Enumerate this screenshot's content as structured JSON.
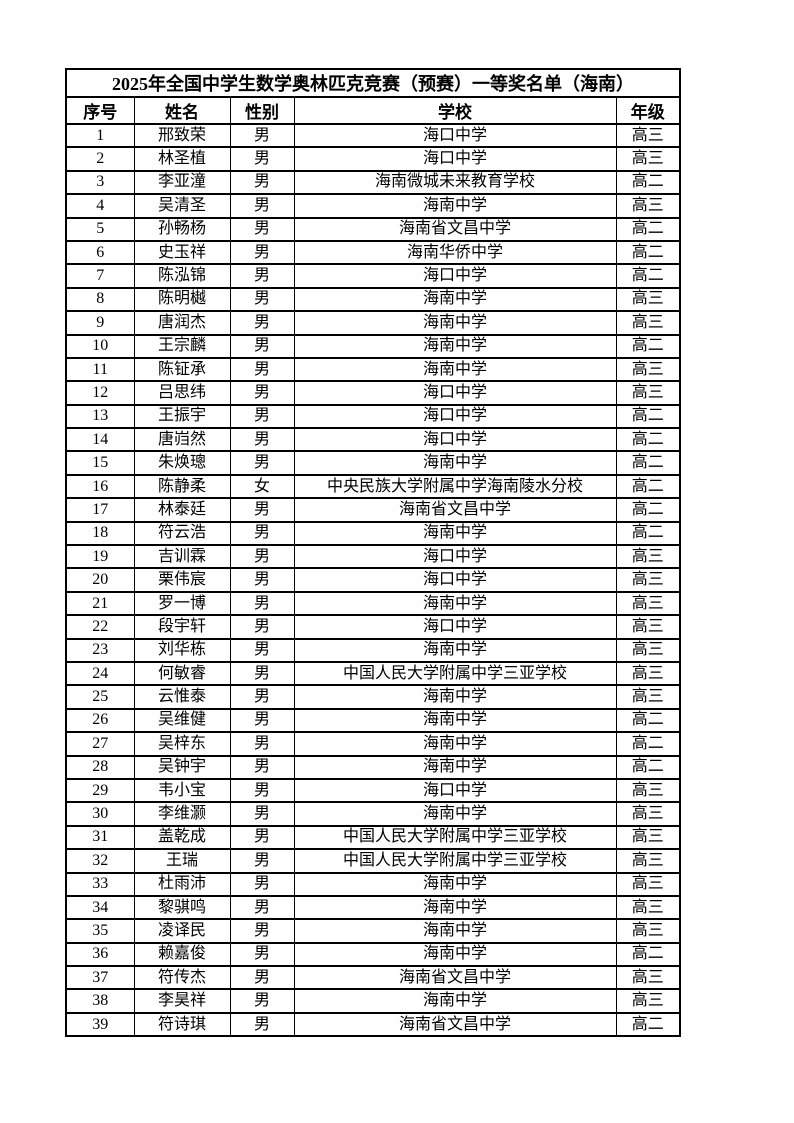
{
  "page": {
    "background_color": "#ffffff",
    "text_color": "#000000",
    "border_color": "#000000"
  },
  "table": {
    "title": "2025年全国中学生数学奥林匹克竞赛（预赛）一等奖名单（海南）",
    "columns": [
      "序号",
      "姓名",
      "性别",
      "学校",
      "年级"
    ],
    "rows": [
      [
        "1",
        "邢致荣",
        "男",
        "海口中学",
        "高三"
      ],
      [
        "2",
        "林圣植",
        "男",
        "海口中学",
        "高三"
      ],
      [
        "3",
        "李亚潼",
        "男",
        "海南微城未来教育学校",
        "高二"
      ],
      [
        "4",
        "吴清圣",
        "男",
        "海南中学",
        "高三"
      ],
      [
        "5",
        "孙畅杨",
        "男",
        "海南省文昌中学",
        "高二"
      ],
      [
        "6",
        "史玉祥",
        "男",
        "海南华侨中学",
        "高二"
      ],
      [
        "7",
        "陈泓锦",
        "男",
        "海口中学",
        "高二"
      ],
      [
        "8",
        "陈明樾",
        "男",
        "海南中学",
        "高三"
      ],
      [
        "9",
        "唐润杰",
        "男",
        "海南中学",
        "高三"
      ],
      [
        "10",
        "王宗麟",
        "男",
        "海南中学",
        "高二"
      ],
      [
        "11",
        "陈钲承",
        "男",
        "海南中学",
        "高三"
      ],
      [
        "12",
        "吕思纬",
        "男",
        "海口中学",
        "高三"
      ],
      [
        "13",
        "王振宇",
        "男",
        "海口中学",
        "高二"
      ],
      [
        "14",
        "唐岿然",
        "男",
        "海口中学",
        "高二"
      ],
      [
        "15",
        "朱焕璁",
        "男",
        "海南中学",
        "高二"
      ],
      [
        "16",
        "陈静柔",
        "女",
        "中央民族大学附属中学海南陵水分校",
        "高二"
      ],
      [
        "17",
        "林泰廷",
        "男",
        "海南省文昌中学",
        "高二"
      ],
      [
        "18",
        "符云浩",
        "男",
        "海南中学",
        "高二"
      ],
      [
        "19",
        "吉训霖",
        "男",
        "海口中学",
        "高三"
      ],
      [
        "20",
        "栗伟宸",
        "男",
        "海口中学",
        "高三"
      ],
      [
        "21",
        "罗一博",
        "男",
        "海南中学",
        "高三"
      ],
      [
        "22",
        "段宇轩",
        "男",
        "海口中学",
        "高三"
      ],
      [
        "23",
        "刘华栋",
        "男",
        "海南中学",
        "高三"
      ],
      [
        "24",
        "何敏睿",
        "男",
        "中国人民大学附属中学三亚学校",
        "高三"
      ],
      [
        "25",
        "云惟泰",
        "男",
        "海南中学",
        "高三"
      ],
      [
        "26",
        "吴维健",
        "男",
        "海南中学",
        "高二"
      ],
      [
        "27",
        "吴梓东",
        "男",
        "海南中学",
        "高二"
      ],
      [
        "28",
        "吴钟宇",
        "男",
        "海南中学",
        "高二"
      ],
      [
        "29",
        "韦小宝",
        "男",
        "海口中学",
        "高三"
      ],
      [
        "30",
        "李维灏",
        "男",
        "海南中学",
        "高三"
      ],
      [
        "31",
        "盖乾成",
        "男",
        "中国人民大学附属中学三亚学校",
        "高三"
      ],
      [
        "32",
        "王瑞",
        "男",
        "中国人民大学附属中学三亚学校",
        "高三"
      ],
      [
        "33",
        "杜雨沛",
        "男",
        "海南中学",
        "高三"
      ],
      [
        "34",
        "黎骐鸣",
        "男",
        "海南中学",
        "高三"
      ],
      [
        "35",
        "凌译民",
        "男",
        "海南中学",
        "高三"
      ],
      [
        "36",
        "赖嘉俊",
        "男",
        "海南中学",
        "高二"
      ],
      [
        "37",
        "符传杰",
        "男",
        "海南省文昌中学",
        "高三"
      ],
      [
        "38",
        "李昊祥",
        "男",
        "海南中学",
        "高三"
      ],
      [
        "39",
        "符诗琪",
        "男",
        "海南省文昌中学",
        "高二"
      ]
    ]
  }
}
